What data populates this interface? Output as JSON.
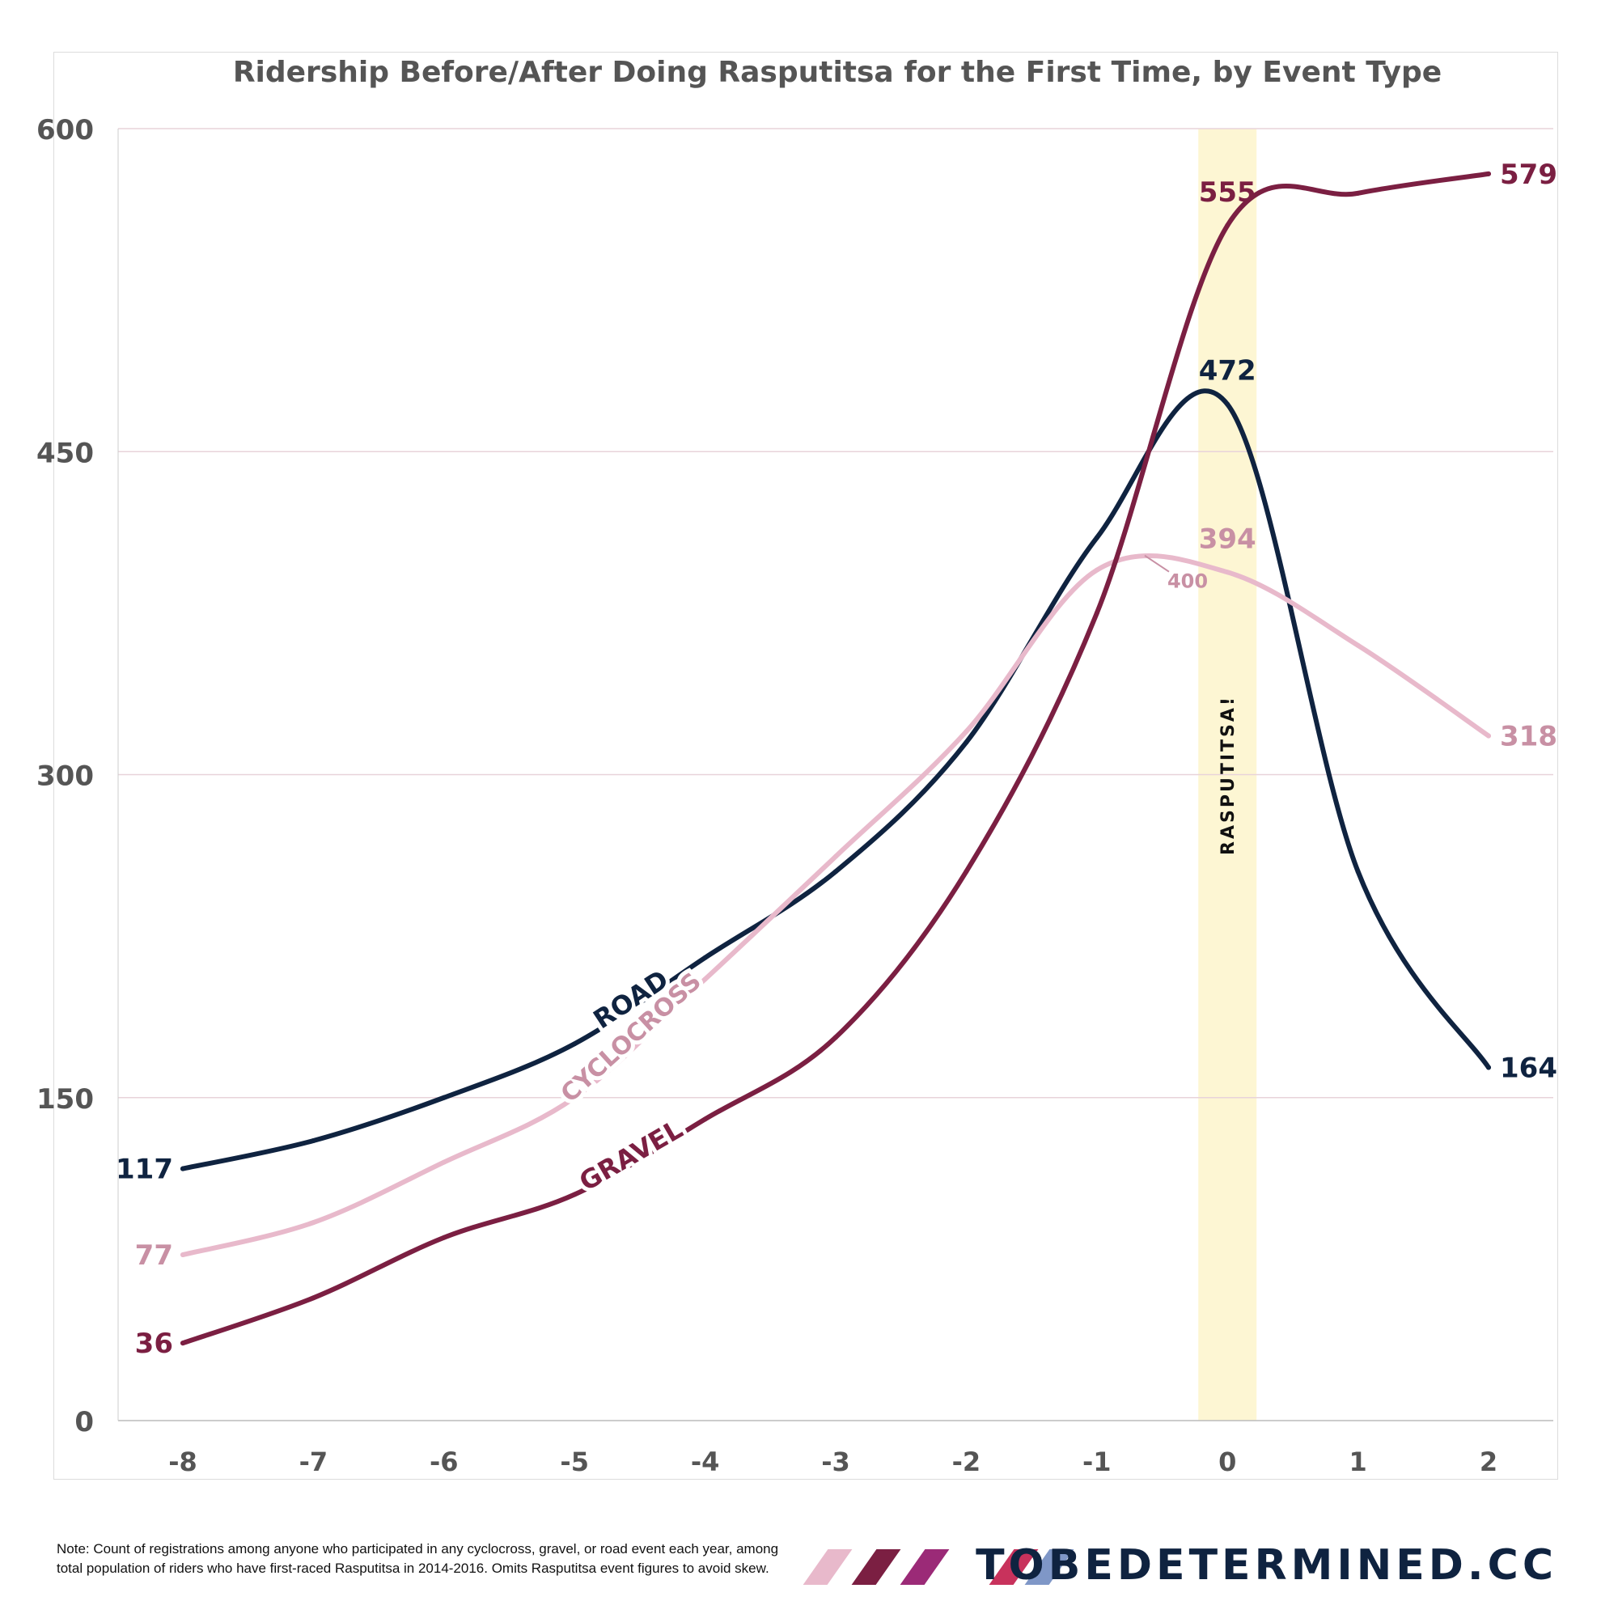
{
  "chart_data": {
    "type": "line",
    "title": "Ridership Before/After Doing Rasputitsa for the First Time, by Event Type",
    "xlabel": "",
    "ylabel": "",
    "x": [
      -8,
      -7,
      -6,
      -5,
      -4,
      -3,
      -2,
      -1,
      0,
      1,
      2
    ],
    "x_tick_labels": [
      "-8",
      "-7",
      "-6",
      "-5",
      "-4",
      "-3",
      "-2",
      "-1",
      "0",
      "1",
      "2"
    ],
    "y_ticks": [
      0,
      150,
      300,
      450,
      600
    ],
    "y_tick_labels": [
      "0",
      "150",
      "300",
      "450",
      "600"
    ],
    "xlim": [
      -8.5,
      2.5
    ],
    "ylim": [
      0,
      600
    ],
    "grid": "horizontal",
    "series": [
      {
        "name": "ROAD",
        "color": "#0f2340",
        "values": [
          117,
          130,
          150,
          175,
          215,
          255,
          315,
          410,
          472,
          255,
          164
        ],
        "start_label": "117",
        "end_label": "164",
        "peak_label": "472"
      },
      {
        "name": "CYCLOCROSS",
        "color": "#e8b9cb",
        "label_color": "#c890a4",
        "values": [
          77,
          92,
          120,
          150,
          205,
          262,
          320,
          395,
          394,
          360,
          318
        ],
        "start_label": "77",
        "end_label": "318",
        "peak_label": "394",
        "max_annotation": "400"
      },
      {
        "name": "GRAVEL",
        "color": "#7b1f42",
        "values": [
          36,
          57,
          85,
          105,
          140,
          178,
          255,
          375,
          555,
          570,
          579
        ],
        "start_label": "36",
        "end_label": "579",
        "peak_label": "555"
      }
    ],
    "highlight": {
      "x": 0,
      "label": "RASPUTITSA!",
      "color": "#fdf6d3"
    }
  },
  "footer": {
    "note": "Note: Count of registrations among anyone who participated in any cyclocross, gravel, or road event each year, among total population of riders who have first-raced Rasputitsa in 2014-2016. Omits Rasputitsa event figures to avoid skew.",
    "brand": "TOBEDETERMINED.CC",
    "slash_colors": [
      "#e8b9cb",
      "#7b1f42",
      "#9b2a77",
      "#c8325c",
      "#7f97c7"
    ]
  }
}
